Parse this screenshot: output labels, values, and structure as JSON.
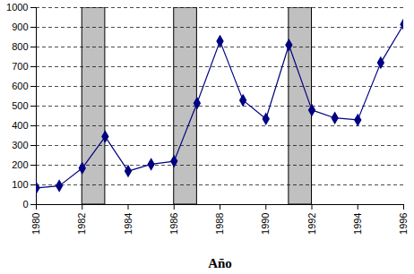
{
  "chart_data": {
    "type": "line",
    "x_label": "Año",
    "x": [
      1980,
      1981,
      1982,
      1983,
      1984,
      1985,
      1986,
      1987,
      1988,
      1989,
      1990,
      1991,
      1992,
      1993,
      1994,
      1995,
      1996
    ],
    "values": [
      85,
      95,
      185,
      345,
      170,
      205,
      220,
      515,
      830,
      530,
      435,
      810,
      480,
      440,
      430,
      720,
      915
    ],
    "color": "#000080",
    "marker": "diamond",
    "xlim": [
      1980,
      1996
    ],
    "xticks": [
      1980,
      1982,
      1984,
      1986,
      1988,
      1990,
      1992,
      1994,
      1996
    ],
    "ylim": [
      0,
      1000
    ],
    "yticks": [
      0,
      100,
      200,
      300,
      400,
      500,
      600,
      700,
      800,
      900,
      1000
    ],
    "grid": true,
    "shaded_periods": [
      [
        1982,
        1983
      ],
      [
        1986,
        1987
      ],
      [
        1991,
        1992
      ]
    ]
  }
}
